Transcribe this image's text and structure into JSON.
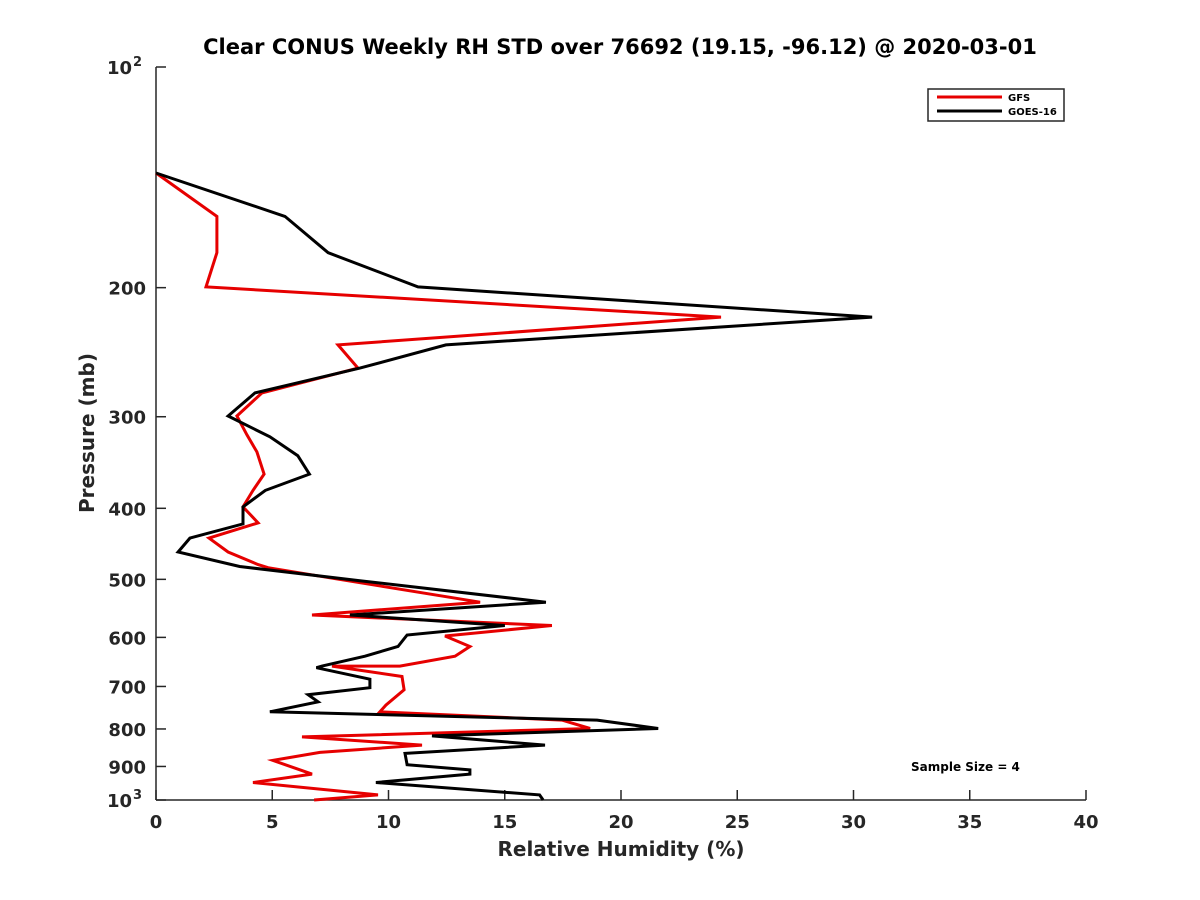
{
  "chart_data": {
    "type": "line",
    "title": "Clear CONUS Weekly RH STD over 76692 (19.15, -96.12) @ 2020-03-01",
    "xlabel": "Relative Humidity (%)",
    "ylabel": "Pressure (mb)",
    "xlim": [
      0,
      40
    ],
    "ylim": [
      100,
      1000
    ],
    "y_scale": "log",
    "y_reversed": true,
    "grid": false,
    "x_ticks": [
      0,
      5,
      10,
      15,
      20,
      25,
      30,
      35,
      40
    ],
    "x_tick_labels": [
      "0",
      "5",
      "10",
      "15",
      "20",
      "25",
      "30",
      "35",
      "40"
    ],
    "y_ticks": [
      100,
      200,
      300,
      400,
      500,
      600,
      700,
      800,
      900,
      1000
    ],
    "y_tick_labels": [
      "10",
      "200",
      "300",
      "400",
      "500",
      "600",
      "700",
      "800",
      "900",
      "10"
    ],
    "y_tick_superscripts": [
      "2",
      "",
      "",
      "",
      "",
      "",
      "",
      "",
      "",
      "3"
    ],
    "legend_placement": "top-right",
    "annotation": "Sample Size = 4",
    "series": [
      {
        "name": "GFS",
        "color": "#e60000",
        "points": [
          [
            0,
            139.5
          ],
          [
            2.62,
            159.9
          ],
          [
            2.62,
            179.2
          ],
          [
            2.15,
            199.5
          ],
          [
            24.3,
            219.4
          ],
          [
            7.83,
            239.4
          ],
          [
            8.69,
            257.5
          ],
          [
            4.56,
            278.4
          ],
          [
            3.48,
            299.3
          ],
          [
            3.91,
            317.5
          ],
          [
            4.34,
            335.0
          ],
          [
            4.65,
            359.2
          ],
          [
            4.17,
            378.1
          ],
          [
            3.74,
            398.2
          ],
          [
            4.39,
            418.8
          ],
          [
            2.28,
            439.2
          ],
          [
            3.1,
            458.9
          ],
          [
            4.39,
            477.3
          ],
          [
            4.82,
            482.0
          ],
          [
            7.48,
            497.6
          ],
          [
            13.94,
            537.2
          ],
          [
            6.71,
            559.3
          ],
          [
            17.03,
            578.0
          ],
          [
            12.43,
            597.4
          ],
          [
            13.5,
            617.5
          ],
          [
            12.86,
            636.6
          ],
          [
            10.49,
            656.6
          ],
          [
            7.57,
            656.6
          ],
          [
            10.58,
            678.4
          ],
          [
            10.67,
            707.3
          ],
          [
            9.89,
            742.3
          ],
          [
            9.63,
            757.9
          ],
          [
            17.46,
            778.0
          ],
          [
            18.67,
            798.9
          ],
          [
            6.28,
            820.2
          ],
          [
            11.44,
            841.7
          ],
          [
            7.05,
            861.1
          ],
          [
            5.03,
            883.1
          ],
          [
            6.71,
            921.9
          ],
          [
            4.17,
            946.4
          ],
          [
            9.55,
            984.2
          ],
          [
            6.8,
            1000
          ]
        ]
      },
      {
        "name": "GOES-16",
        "color": "#000000",
        "points": [
          [
            0,
            139.5
          ],
          [
            5.55,
            159.9
          ],
          [
            7.4,
            179.2
          ],
          [
            11.27,
            199.5
          ],
          [
            30.8,
            219.4
          ],
          [
            12.47,
            239.4
          ],
          [
            8.77,
            257.5
          ],
          [
            4.26,
            278.4
          ],
          [
            3.1,
            299.3
          ],
          [
            4.9,
            319.5
          ],
          [
            6.1,
            339.1
          ],
          [
            6.6,
            359.2
          ],
          [
            4.7,
            378.1
          ],
          [
            3.74,
            398.2
          ],
          [
            3.74,
            420.1
          ],
          [
            1.46,
            439.2
          ],
          [
            0.95,
            458.9
          ],
          [
            3.6,
            480.3
          ],
          [
            8.77,
            502.2
          ],
          [
            16.77,
            537.2
          ],
          [
            8.34,
            559.3
          ],
          [
            15.0,
            578.0
          ],
          [
            10.8,
            595.5
          ],
          [
            10.41,
            617.5
          ],
          [
            8.99,
            636.6
          ],
          [
            7.14,
            656.6
          ],
          [
            6.9,
            660.0
          ],
          [
            9.2,
            684.2
          ],
          [
            9.2,
            702.8
          ],
          [
            6.54,
            718.3
          ],
          [
            6.97,
            734.6
          ],
          [
            4.9,
            757.9
          ],
          [
            18.97,
            778.0
          ],
          [
            21.6,
            798.9
          ],
          [
            11.87,
            817.6
          ],
          [
            16.73,
            841.7
          ],
          [
            10.71,
            863.9
          ],
          [
            10.8,
            895.1
          ],
          [
            13.5,
            909.9
          ],
          [
            13.5,
            921.9
          ],
          [
            9.46,
            946.4
          ],
          [
            16.5,
            984.2
          ],
          [
            16.65,
            1000
          ]
        ]
      }
    ]
  }
}
